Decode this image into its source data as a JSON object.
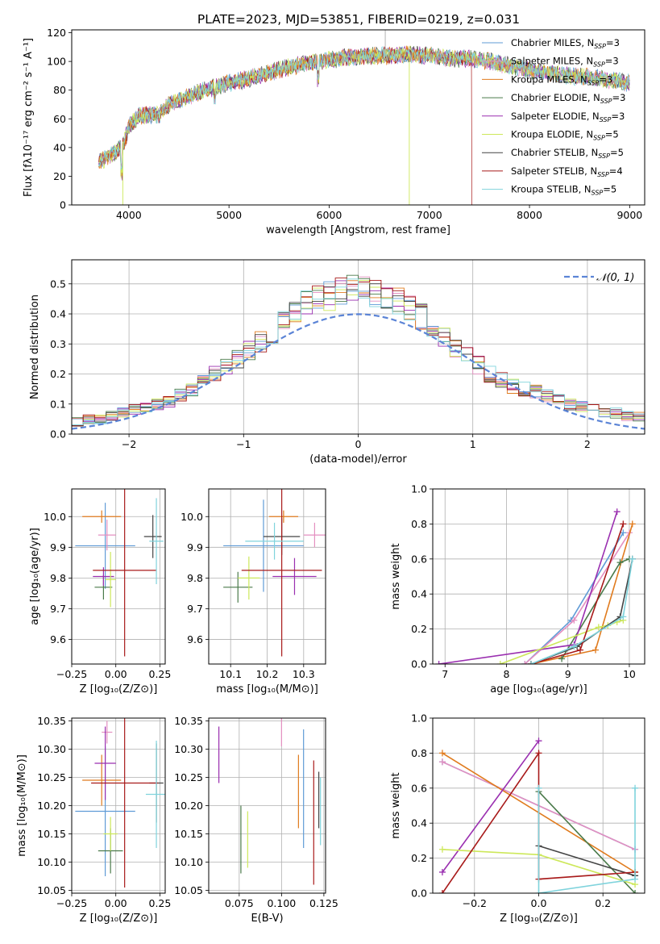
{
  "figure_title": "PLATE=2023, MJD=53851, FIBERID=0219, z=0.031",
  "models": [
    {
      "name": "Chabrier MILES",
      "nssp": "3",
      "color": "#5f9bd6"
    },
    {
      "name": "Salpeter MILES",
      "nssp": "3",
      "color": "#e48fc0"
    },
    {
      "name": "Kroupa MILES",
      "nssp": "3",
      "color": "#e07b1e"
    },
    {
      "name": "Chabrier ELODIE",
      "nssp": "3",
      "color": "#4a7a4a"
    },
    {
      "name": "Salpeter ELODIE",
      "nssp": "3",
      "color": "#9a2fb0"
    },
    {
      "name": "Kroupa ELODIE",
      "nssp": "5",
      "color": "#cde85a"
    },
    {
      "name": "Chabrier STELIB",
      "nssp": "5",
      "color": "#444444"
    },
    {
      "name": "Salpeter STELIB",
      "nssp": "4",
      "color": "#a81a1a"
    },
    {
      "name": "Kroupa STELIB",
      "nssp": "5",
      "color": "#7fd3dc"
    }
  ],
  "chart_data": [
    {
      "id": "spectrum",
      "type": "line",
      "xlabel": "wavelength [Angstrom, rest frame]",
      "ylabel": "Flux [fλ10⁻¹⁷ erg cm⁻² s⁻¹ A⁻¹]",
      "xlim": [
        3430,
        9150
      ],
      "ylim": [
        0,
        122
      ],
      "xticks": [
        4000,
        5000,
        6000,
        7000,
        8000,
        9000
      ],
      "yticks": [
        0,
        20,
        40,
        60,
        80,
        100,
        120
      ],
      "grid": false,
      "legend_position": "right",
      "continuum": [
        [
          3700,
          30
        ],
        [
          3850,
          36
        ],
        [
          3950,
          42
        ],
        [
          4000,
          55
        ],
        [
          4100,
          62
        ],
        [
          4300,
          63
        ],
        [
          4400,
          70
        ],
        [
          4600,
          76
        ],
        [
          4800,
          81
        ],
        [
          5000,
          85
        ],
        [
          5200,
          88
        ],
        [
          5400,
          92
        ],
        [
          5600,
          96
        ],
        [
          5800,
          99
        ],
        [
          6000,
          101
        ],
        [
          6200,
          103
        ],
        [
          6400,
          104
        ],
        [
          6600,
          104
        ],
        [
          6800,
          105
        ],
        [
          7000,
          104
        ],
        [
          7200,
          102
        ],
        [
          7400,
          102
        ],
        [
          7600,
          100
        ],
        [
          7800,
          97
        ],
        [
          8000,
          94
        ],
        [
          8200,
          92
        ],
        [
          8400,
          90
        ],
        [
          8600,
          89
        ],
        [
          8800,
          87
        ],
        [
          9000,
          85
        ]
      ]
    },
    {
      "id": "residuals",
      "type": "histogram",
      "xlabel": "(data-model)/error",
      "ylabel": "Normed distribution",
      "xlim": [
        -2.5,
        2.5
      ],
      "ylim": [
        0,
        0.58
      ],
      "xticks": [
        -2,
        -1,
        0,
        1,
        2
      ],
      "yticks": [
        0.0,
        0.1,
        0.2,
        0.3,
        0.4,
        0.5
      ],
      "grid": true,
      "legend": "𝒩(0, 1)",
      "legend_position": "top-right",
      "reference_curve": "normal(0,1)",
      "bin_width": 0.1,
      "base_profile": [
        0.02,
        0.02,
        0.03,
        0.03,
        0.04,
        0.04,
        0.05,
        0.05,
        0.06,
        0.07,
        0.08,
        0.09,
        0.1,
        0.11,
        0.13,
        0.15,
        0.18,
        0.2,
        0.22,
        0.25,
        0.28,
        0.31,
        0.34,
        0.37,
        0.4,
        0.43,
        0.45,
        0.46,
        0.47,
        0.48,
        0.48,
        0.47,
        0.46,
        0.44,
        0.42,
        0.39,
        0.35,
        0.32,
        0.29,
        0.26,
        0.23,
        0.2,
        0.18,
        0.16,
        0.15,
        0.14,
        0.13,
        0.12,
        0.1,
        0.09,
        0.08,
        0.07,
        0.07,
        0.06,
        0.06,
        0.05,
        0.05,
        0.04,
        0.04,
        0.03,
        0.03,
        0.03,
        0.02,
        0.02,
        0.02,
        0.02,
        0.02,
        0.02,
        0.02,
        0.02
      ]
    },
    {
      "id": "age_vs_Z",
      "type": "errorbar",
      "xlabel": "Z [log₁₀(Z/Z⊙)]",
      "ylabel": "age  [log₁₀(age/yr)]",
      "xlim": [
        -0.25,
        0.28
      ],
      "ylim": [
        9.52,
        10.09
      ],
      "xticks": [
        -0.25,
        0.0,
        0.25
      ],
      "xticklabels": [
        "−0.25",
        "0.00",
        "0.25"
      ],
      "yticks": [
        9.6,
        9.7,
        9.8,
        9.9,
        10.0
      ],
      "grid": true,
      "points": [
        {
          "x": -0.06,
          "xerr": 0.17,
          "y": 9.905,
          "yerr": 0.14
        },
        {
          "x": -0.05,
          "xerr": 0.05,
          "y": 9.94,
          "yerr": 0.05
        },
        {
          "x": -0.08,
          "xerr": 0.11,
          "y": 10.0,
          "yerr": 0.02
        },
        {
          "x": -0.07,
          "xerr": 0.05,
          "y": 9.77,
          "yerr": 0.04
        },
        {
          "x": -0.07,
          "xerr": 0.06,
          "y": 9.805,
          "yerr": 0.03
        },
        {
          "x": -0.03,
          "xerr": 0.03,
          "y": 9.795,
          "yerr": 0.09
        },
        {
          "x": 0.21,
          "xerr": 0.05,
          "y": 9.935,
          "yerr": 0.07
        },
        {
          "x": 0.05,
          "xerr": 0.18,
          "y": 9.825,
          "yerr": 0.28
        },
        {
          "x": 0.23,
          "xerr": 0.04,
          "y": 9.92,
          "yerr": 0.14
        }
      ]
    },
    {
      "id": "age_vs_mass",
      "type": "errorbar",
      "xlabel": "mass [log₁₀(M/M⊙)]",
      "ylabel": "",
      "xlim": [
        10.04,
        10.36
      ],
      "ylim": [
        9.52,
        10.09
      ],
      "xticks": [
        10.1,
        10.2,
        10.3
      ],
      "yticks": [
        9.6,
        9.7,
        9.8,
        9.9,
        10.0
      ],
      "grid": true,
      "points": [
        {
          "x": 10.19,
          "xerr": 0.11,
          "y": 9.905,
          "yerr": 0.15
        },
        {
          "x": 10.33,
          "xerr": 0.03,
          "y": 9.94,
          "yerr": 0.04
        },
        {
          "x": 10.245,
          "xerr": 0.04,
          "y": 10.0,
          "yerr": 0.02
        },
        {
          "x": 10.12,
          "xerr": 0.04,
          "y": 9.77,
          "yerr": 0.05
        },
        {
          "x": 10.275,
          "xerr": 0.06,
          "y": 9.805,
          "yerr": 0.06
        },
        {
          "x": 10.15,
          "xerr": 0.03,
          "y": 9.8,
          "yerr": 0.07
        },
        {
          "x": 10.24,
          "xerr": 0.05,
          "y": 9.935,
          "yerr": 0.06
        },
        {
          "x": 10.24,
          "xerr": 0.11,
          "y": 9.825,
          "yerr": 0.28
        },
        {
          "x": 10.22,
          "xerr": 0.08,
          "y": 9.92,
          "yerr": 0.06
        }
      ]
    },
    {
      "id": "massweight_vs_age",
      "type": "line",
      "xlabel": "age  [log₁₀(age/yr)]",
      "ylabel": "mass weight",
      "xlim": [
        6.8,
        10.25
      ],
      "ylim": [
        0.0,
        1.0
      ],
      "xticks": [
        7,
        8,
        9,
        10
      ],
      "yticks": [
        0.0,
        0.2,
        0.4,
        0.6,
        0.8,
        1.0
      ],
      "grid": true,
      "series": [
        {
          "x": [
            8.3,
            9.05,
            9.9
          ],
          "y": [
            0.0,
            0.25,
            0.75
          ]
        },
        {
          "x": [
            8.3,
            9.1,
            10.0
          ],
          "y": [
            0.0,
            0.25,
            0.75
          ]
        },
        {
          "x": [
            8.4,
            9.45,
            10.05
          ],
          "y": [
            0.0,
            0.08,
            0.8
          ]
        },
        {
          "x": [
            8.9,
            9.85,
            10.0
          ],
          "y": [
            0.03,
            0.58,
            0.6
          ]
        },
        {
          "x": [
            6.9,
            9.1,
            9.8
          ],
          "y": [
            0.0,
            0.11,
            0.87
          ]
        },
        {
          "x": [
            7.9,
            9.5,
            9.65,
            9.8,
            9.9
          ],
          "y": [
            0.0,
            0.21,
            0.22,
            0.24,
            0.25
          ]
        },
        {
          "x": [
            8.4,
            9.15,
            9.85,
            10.05
          ],
          "y": [
            0.0,
            0.1,
            0.27,
            0.6
          ]
        },
        {
          "x": [
            8.4,
            9.2,
            9.9
          ],
          "y": [
            0.0,
            0.08,
            0.8
          ]
        },
        {
          "x": [
            8.4,
            9.1,
            9.9,
            10.05
          ],
          "y": [
            0.0,
            0.1,
            0.27,
            0.6
          ]
        }
      ]
    },
    {
      "id": "mass_vs_Z",
      "type": "errorbar",
      "xlabel": "Z [log₁₀(Z/Z⊙)]",
      "ylabel": "mass [log₁₀(M/M⊙)]",
      "xlim": [
        -0.25,
        0.28
      ],
      "ylim": [
        10.045,
        10.355
      ],
      "xticks": [
        -0.25,
        0.0,
        0.25
      ],
      "xticklabels": [
        "−0.25",
        "0.00",
        "0.25"
      ],
      "yticks": [
        10.05,
        10.1,
        10.15,
        10.2,
        10.25,
        10.3,
        10.35
      ],
      "grid": true,
      "points": [
        {
          "x": -0.06,
          "xerr": 0.17,
          "y": 10.19,
          "yerr": 0.115
        },
        {
          "x": -0.05,
          "xerr": 0.03,
          "y": 10.33,
          "yerr": 0.02
        },
        {
          "x": -0.08,
          "xerr": 0.11,
          "y": 10.245,
          "yerr": 0.045
        },
        {
          "x": -0.03,
          "xerr": 0.07,
          "y": 10.12,
          "yerr": 0.04
        },
        {
          "x": -0.06,
          "xerr": 0.06,
          "y": 10.275,
          "yerr": 0.065
        },
        {
          "x": -0.03,
          "xerr": 0.04,
          "y": 10.15,
          "yerr": 0.03
        },
        {
          "x": 0.23,
          "xerr": 0.04,
          "y": 10.24,
          "yerr": 0.07
        },
        {
          "x": 0.05,
          "xerr": 0.19,
          "y": 10.24,
          "yerr": 0.185
        },
        {
          "x": 0.23,
          "xerr": 0.06,
          "y": 10.22,
          "yerr": 0.095
        }
      ]
    },
    {
      "id": "mass_vs_ebv",
      "type": "errorbar",
      "xlabel": "E(B-V)",
      "ylabel": "",
      "xlim": [
        0.057,
        0.126
      ],
      "ylim": [
        10.045,
        10.355
      ],
      "xticks": [
        0.075,
        0.1,
        0.125
      ],
      "xticklabels": [
        "0.075",
        "0.100",
        "0.125"
      ],
      "yticks": [
        10.05,
        10.1,
        10.15,
        10.2,
        10.25,
        10.3,
        10.35
      ],
      "grid": true,
      "points": [
        {
          "x": 0.113,
          "xerr": 0,
          "y": 10.23,
          "yerr": 0.105
        },
        {
          "x": 0.1,
          "xerr": 0,
          "y": 10.33,
          "yerr": 0.025
        },
        {
          "x": 0.11,
          "xerr": 0,
          "y": 10.225,
          "yerr": 0.065
        },
        {
          "x": 0.076,
          "xerr": 0,
          "y": 10.14,
          "yerr": 0.06
        },
        {
          "x": 0.063,
          "xerr": 0,
          "y": 10.29,
          "yerr": 0.05
        },
        {
          "x": 0.08,
          "xerr": 0,
          "y": 10.14,
          "yerr": 0.05
        },
        {
          "x": 0.122,
          "xerr": 0,
          "y": 10.21,
          "yerr": 0.05
        },
        {
          "x": 0.119,
          "xerr": 0,
          "y": 10.17,
          "yerr": 0.11
        },
        {
          "x": 0.123,
          "xerr": 0,
          "y": 10.19,
          "yerr": 0.06
        }
      ]
    },
    {
      "id": "massweight_vs_Z",
      "type": "line",
      "xlabel": "Z [log₁₀(Z/Z⊙)]",
      "ylabel": "mass weight",
      "xlim": [
        -0.33,
        0.33
      ],
      "ylim": [
        0.0,
        1.0
      ],
      "xticks": [
        -0.2,
        0.0,
        0.2
      ],
      "xticklabels": [
        "−0.2",
        "0.0",
        "0.2"
      ],
      "yticks": [
        0.0,
        0.2,
        0.4,
        0.6,
        0.8,
        1.0
      ],
      "grid": true,
      "series": [
        {
          "x": [
            -0.3,
            0.3
          ],
          "y": [
            0.75,
            0.25
          ]
        },
        {
          "x": [
            -0.3,
            0.3
          ],
          "y": [
            0.75,
            0.25
          ]
        },
        {
          "x": [
            -0.3,
            0.3
          ],
          "y": [
            0.8,
            0.12
          ]
        },
        {
          "x": [
            0.0,
            0.3
          ],
          "y": [
            0.58,
            0.0
          ]
        },
        {
          "x": [
            -0.3,
            0.0
          ],
          "y": [
            0.12,
            0.87
          ]
        },
        {
          "x": [
            -0.3,
            0.0,
            0.3
          ],
          "y": [
            0.25,
            0.22,
            0.05
          ]
        },
        {
          "x": [
            0.0,
            0.3
          ],
          "y": [
            0.27,
            0.1
          ]
        },
        {
          "x": [
            -0.3,
            0.0,
            0.0,
            0.3
          ],
          "y": [
            0.0,
            0.8,
            0.08,
            0.12
          ]
        },
        {
          "x": [
            0.0,
            0.0,
            0.3,
            0.3
          ],
          "y": [
            0.6,
            0.0,
            0.08,
            0.6
          ]
        }
      ]
    }
  ]
}
